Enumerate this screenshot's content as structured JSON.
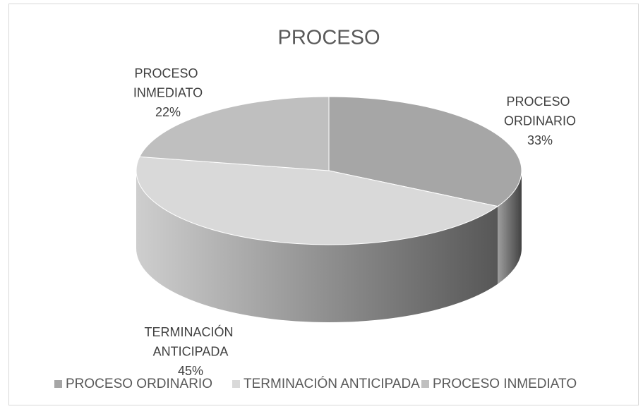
{
  "chart_data": {
    "type": "pie3d",
    "title": "PROCESO",
    "categories": [
      "PROCESO ORDINARIO",
      "TERMINACIÓN ANTICIPADA",
      "PROCESO INMEDIATO"
    ],
    "values": [
      33,
      45,
      22
    ],
    "value_labels": [
      "33%",
      "45%",
      "22%"
    ],
    "colors": [
      "#a6a6a6",
      "#d9d9d9",
      "#bfbfbf"
    ],
    "legend": "bottom"
  }
}
